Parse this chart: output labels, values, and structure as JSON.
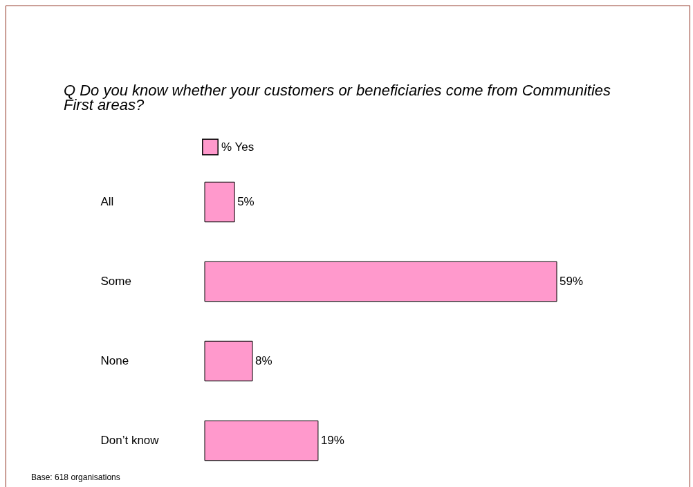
{
  "chart_data": {
    "type": "bar",
    "orientation": "horizontal",
    "title": "Q   Do you know whether your customers or beneficiaries come from Communities First areas?",
    "categories": [
      "All",
      "Some",
      "None",
      "Don’t know"
    ],
    "series": [
      {
        "name": "% Yes",
        "color": "#ff99cc",
        "values": [
          5,
          59,
          8,
          19
        ],
        "value_labels": [
          "5%",
          "59%",
          "8%",
          "19%"
        ]
      }
    ],
    "legend": "top",
    "annotations": [
      "Base: 618 organisations"
    ]
  }
}
